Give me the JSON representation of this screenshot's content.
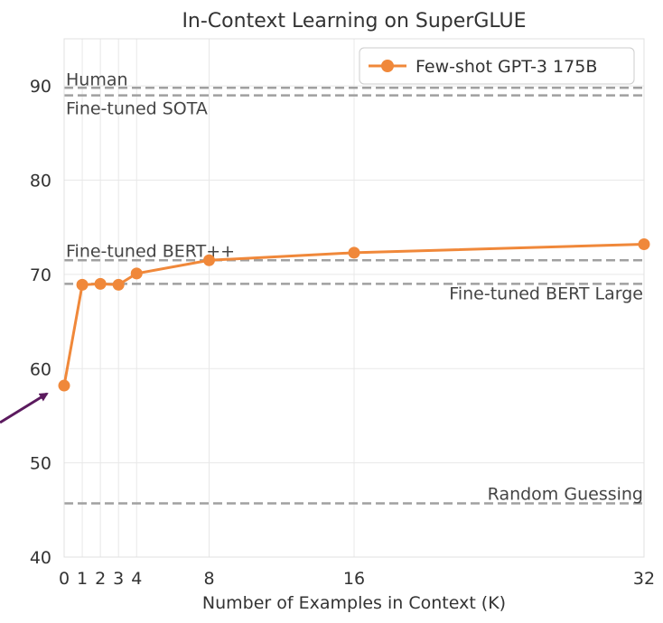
{
  "chart_data": {
    "type": "line",
    "title": "In-Context Learning on SuperGLUE",
    "xlabel": "Number of Examples in Context (K)",
    "ylabel": "",
    "x_ticks": [
      "0",
      "1",
      "2",
      "3",
      "4",
      "8",
      "16",
      "32"
    ],
    "y_ticks": [
      40,
      50,
      60,
      70,
      80,
      90
    ],
    "ylim": [
      40,
      95
    ],
    "grid": true,
    "legend_position": "top-right",
    "series": [
      {
        "name": "Few-shot GPT-3 175B",
        "color": "#f0883a",
        "x": [
          0,
          1,
          2,
          3,
          4,
          8,
          16,
          32
        ],
        "values": [
          58.2,
          68.9,
          69.0,
          68.9,
          70.1,
          71.5,
          72.3,
          73.2
        ]
      }
    ],
    "reference_lines": [
      {
        "label": "Human",
        "value": 89.8
      },
      {
        "label": "Fine-tuned SOTA",
        "value": 89.0
      },
      {
        "label": "Fine-tuned BERT++",
        "value": 71.5
      },
      {
        "label": "Fine-tuned BERT Large",
        "value": 69.0
      },
      {
        "label": "Random Guessing",
        "value": 45.7
      }
    ],
    "colors": {
      "reference_line": "#a0a0a0",
      "grid": "#e8e8e8",
      "annotation_arrow": "#5b1a5e"
    }
  }
}
